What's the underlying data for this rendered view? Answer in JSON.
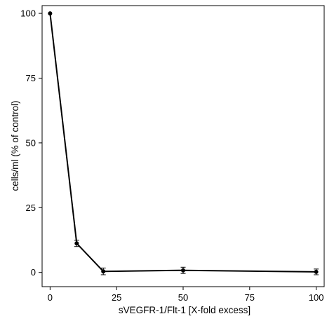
{
  "chart_data": {
    "type": "line",
    "title": "",
    "xlabel": "sVEGFR-1/Flt-1 [X-fold excess]",
    "ylabel": "cells/ml (% of control)",
    "xlim": [
      -3,
      103
    ],
    "ylim": [
      -5.5,
      103
    ],
    "x_ticks": [
      0,
      25,
      50,
      75,
      100
    ],
    "y_ticks": [
      0,
      25,
      50,
      75,
      100
    ],
    "x_tick_labels": [
      "0",
      "25",
      "50",
      "75",
      "100"
    ],
    "y_tick_labels": [
      "0",
      "25",
      "50",
      "75",
      "100"
    ],
    "grid": false,
    "legend": "none",
    "series": [
      {
        "x": [
          0,
          10,
          20,
          50,
          100
        ],
        "y": [
          100,
          11.2,
          0.4,
          0.8,
          0.2
        ],
        "error": [
          0,
          1.2,
          1.3,
          1.2,
          1.1
        ],
        "color": "#000000"
      }
    ]
  }
}
